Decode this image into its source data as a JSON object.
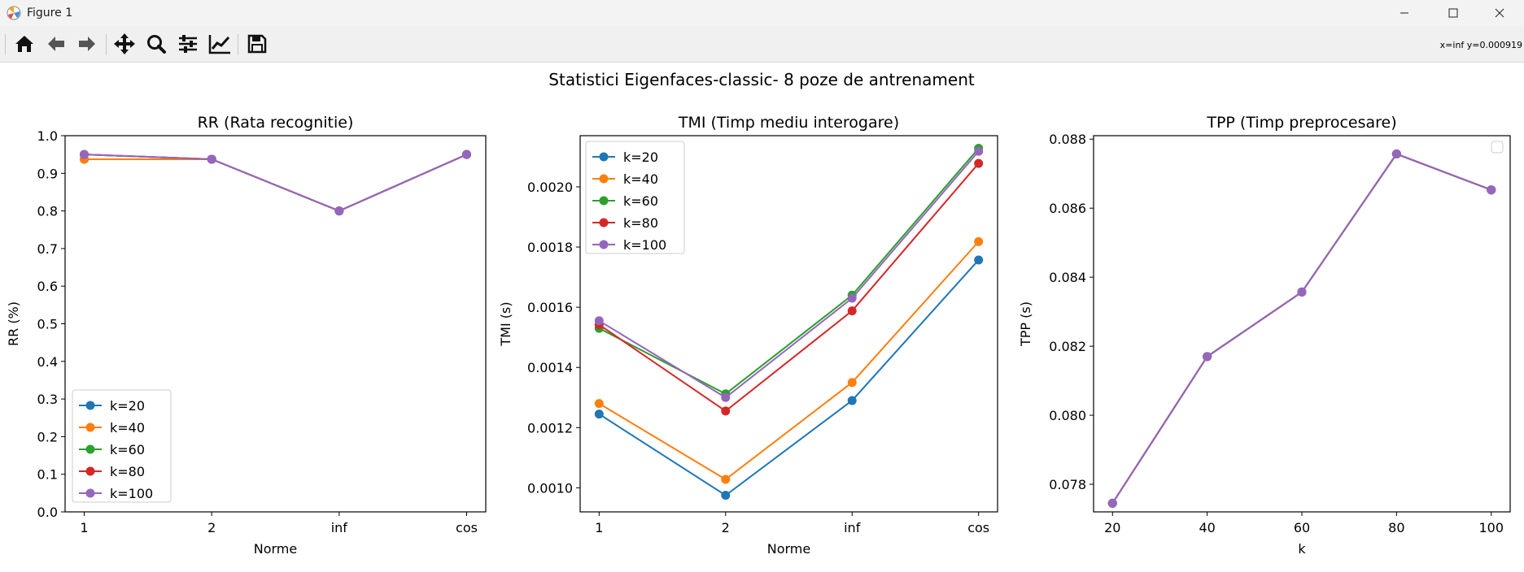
{
  "window": {
    "title": "Figure 1"
  },
  "toolbar": {
    "buttons": [
      "home-icon",
      "back-arrow-icon",
      "forward-arrow-icon",
      "pan-move-icon",
      "zoom-icon",
      "configure-subplots-icon",
      "edit-axis-icon",
      "save-icon"
    ],
    "coords_text": "x=inf y=0.000919"
  },
  "figure": {
    "suptitle": "Statistici Eigenfaces-classic- 8 poze de antrenament"
  },
  "colors": {
    "k20": "#1f77b4",
    "k40": "#ff7f0e",
    "k60": "#2ca02c",
    "k80": "#d62728",
    "k100": "#9467bd"
  },
  "chart_data": [
    {
      "type": "line",
      "title": "RR (Rata recognitie)",
      "xlabel": "Norme",
      "ylabel": "RR (%)",
      "categories": [
        "1",
        "2",
        "inf",
        "cos"
      ],
      "ylim": [
        0.0,
        1.0
      ],
      "yticks": [
        "0.0",
        "0.1",
        "0.2",
        "0.3",
        "0.4",
        "0.5",
        "0.6",
        "0.7",
        "0.8",
        "0.9",
        "1.0"
      ],
      "legend": "lower-left",
      "series": [
        {
          "name": "k=20",
          "values": [
            0.9375,
            0.9375,
            0.8,
            0.95
          ]
        },
        {
          "name": "k=40",
          "values": [
            0.9375,
            0.9375,
            0.8,
            0.95
          ]
        },
        {
          "name": "k=60",
          "values": [
            0.95,
            0.9375,
            0.8,
            0.95
          ]
        },
        {
          "name": "k=80",
          "values": [
            0.95,
            0.9375,
            0.8,
            0.95
          ]
        },
        {
          "name": "k=100",
          "values": [
            0.95,
            0.9375,
            0.8,
            0.95
          ]
        }
      ]
    },
    {
      "type": "line",
      "title": "TMI (Timp mediu interogare)",
      "xlabel": "Norme",
      "ylabel": "TMI (s)",
      "categories": [
        "1",
        "2",
        "inf",
        "cos"
      ],
      "ylim": [
        0.00092,
        0.00217
      ],
      "yticks": [
        "0.0010",
        "0.0012",
        "0.0014",
        "0.0016",
        "0.0018",
        "0.0020"
      ],
      "legend": "upper-left",
      "series": [
        {
          "name": "k=20",
          "values": [
            0.001245,
            0.000975,
            0.00129,
            0.001757
          ]
        },
        {
          "name": "k=40",
          "values": [
            0.00128,
            0.001028,
            0.00135,
            0.001818
          ]
        },
        {
          "name": "k=60",
          "values": [
            0.00153,
            0.001312,
            0.00164,
            0.002128
          ]
        },
        {
          "name": "k=80",
          "values": [
            0.001542,
            0.001255,
            0.001588,
            0.002078
          ]
        },
        {
          "name": "k=100",
          "values": [
            0.001555,
            0.0013,
            0.00163,
            0.002118
          ]
        }
      ]
    },
    {
      "type": "line",
      "title": "TPP (Timp preprocesare)",
      "xlabel": "k",
      "ylabel": "TPP (s)",
      "x": [
        20,
        40,
        60,
        80,
        100
      ],
      "xticks": [
        "20",
        "40",
        "60",
        "80",
        "100"
      ],
      "ylim": [
        0.0772,
        0.0881
      ],
      "yticks": [
        "0.078",
        "0.080",
        "0.082",
        "0.084",
        "0.086",
        "0.088"
      ],
      "legend": "upper-right (empty)",
      "series": [
        {
          "values": [
            0.07745,
            0.0817,
            0.08357,
            0.08757,
            0.08653
          ]
        },
        {
          "values": [
            0.07745,
            0.0817,
            0.08357,
            0.08757,
            0.08653
          ]
        },
        {
          "values": [
            0.07745,
            0.0817,
            0.08357,
            0.08757,
            0.08653
          ]
        },
        {
          "values": [
            0.07745,
            0.0817,
            0.08357,
            0.08757,
            0.08653
          ]
        },
        {
          "values": [
            0.07745,
            0.0817,
            0.08357,
            0.08757,
            0.08653
          ]
        }
      ]
    }
  ]
}
